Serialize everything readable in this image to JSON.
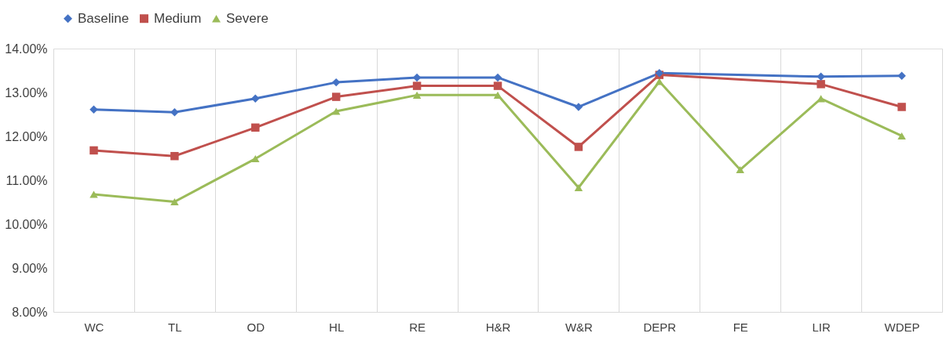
{
  "chart_data": {
    "type": "line",
    "categories": [
      "WC",
      "TL",
      "OD",
      "HL",
      "RE",
      "H&R",
      "W&R",
      "DEPR",
      "FE",
      "LIR",
      "WDEP"
    ],
    "series": [
      {
        "name": "Baseline",
        "color": "#4472c4",
        "marker": "diamond",
        "values": [
          12.61,
          12.55,
          12.86,
          13.23,
          13.34,
          13.34,
          12.67,
          13.44,
          null,
          13.36,
          13.38
        ]
      },
      {
        "name": "Medium",
        "color": "#c0504d",
        "marker": "square",
        "values": [
          11.68,
          11.55,
          12.2,
          12.9,
          13.15,
          13.15,
          11.76,
          13.4,
          null,
          13.19,
          12.67
        ]
      },
      {
        "name": "Severe",
        "color": "#9bbb59",
        "marker": "triangle",
        "values": [
          10.68,
          10.51,
          11.49,
          12.57,
          12.94,
          12.94,
          10.83,
          13.25,
          11.24,
          12.86,
          12.01
        ]
      }
    ],
    "ylim": [
      8,
      14
    ],
    "yticks": [
      {
        "value": 8,
        "label": "8.00%"
      },
      {
        "value": 9,
        "label": "9.00%"
      },
      {
        "value": 10,
        "label": "10.00%"
      },
      {
        "value": 11,
        "label": "11.00%"
      },
      {
        "value": 12,
        "label": "12.00%"
      },
      {
        "value": 13,
        "label": "13.00%"
      },
      {
        "value": 14,
        "label": "14.00%"
      }
    ],
    "grid": "x",
    "legend": "top",
    "line_style": "solid"
  }
}
